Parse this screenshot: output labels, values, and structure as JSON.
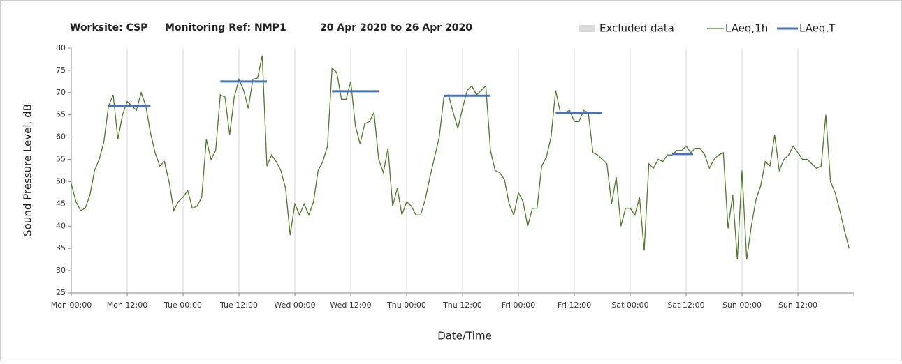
{
  "chart_data": {
    "type": "line",
    "title": "Worksite: CSP",
    "subtitle": "Monitoring Ref: NMP1",
    "date_range": "20 Apr 2020 to 26 Apr 2020",
    "xlabel": "Date/Time",
    "ylabel": "Sound Pressure Level, dB",
    "xlim": [
      0,
      168
    ],
    "ylim": [
      25,
      80
    ],
    "yticks": [
      25,
      30,
      35,
      40,
      45,
      50,
      55,
      60,
      65,
      70,
      75,
      80
    ],
    "xticks": [
      {
        "value": 0,
        "label": "Mon 00:00"
      },
      {
        "value": 12,
        "label": "Mon 12:00"
      },
      {
        "value": 24,
        "label": "Tue 00:00"
      },
      {
        "value": 36,
        "label": "Tue 12:00"
      },
      {
        "value": 48,
        "label": "Wed 00:00"
      },
      {
        "value": 60,
        "label": "Wed 12:00"
      },
      {
        "value": 72,
        "label": "Thu 00:00"
      },
      {
        "value": 84,
        "label": "Thu 12:00"
      },
      {
        "value": 96,
        "label": "Fri 00:00"
      },
      {
        "value": 108,
        "label": "Fri 12:00"
      },
      {
        "value": 120,
        "label": "Sat 00:00"
      },
      {
        "value": 132,
        "label": "Sat 12:00"
      },
      {
        "value": 144,
        "label": "Sun 00:00"
      },
      {
        "value": 156,
        "label": "Sun 12:00"
      }
    ],
    "grid": "x",
    "excluded": {
      "name": "Excluded data",
      "color": "#d9d9d9"
    },
    "series": [
      {
        "name": "LAeq,1h",
        "color": "#4f7a28",
        "x": [
          0,
          1,
          2,
          3,
          4,
          5,
          6,
          7,
          8,
          9,
          10,
          11,
          12,
          13,
          14,
          15,
          16,
          17,
          18,
          19,
          20,
          21,
          22,
          23,
          24,
          25,
          26,
          27,
          28,
          29,
          30,
          31,
          32,
          33,
          34,
          35,
          36,
          37,
          38,
          39,
          40,
          41,
          42,
          43,
          44,
          45,
          46,
          47,
          48,
          49,
          50,
          51,
          52,
          53,
          54,
          55,
          56,
          57,
          58,
          59,
          60,
          61,
          62,
          63,
          64,
          65,
          66,
          67,
          68,
          69,
          70,
          71,
          72,
          73,
          74,
          75,
          76,
          77,
          78,
          79,
          80,
          81,
          82,
          83,
          84,
          85,
          86,
          87,
          88,
          89,
          90,
          91,
          92,
          93,
          94,
          95,
          96,
          97,
          98,
          99,
          100,
          101,
          102,
          103,
          104,
          105,
          106,
          107,
          108,
          109,
          110,
          111,
          112,
          113,
          114,
          115,
          116,
          117,
          118,
          119,
          120,
          121,
          122,
          123,
          124,
          125,
          126,
          127,
          128,
          129,
          130,
          131,
          132,
          133,
          134,
          135,
          136,
          137,
          138,
          139,
          140,
          141,
          142,
          143,
          144,
          145,
          146,
          147,
          148,
          149,
          150,
          151,
          152,
          153,
          154,
          155,
          156,
          157,
          158,
          159,
          160,
          161,
          162,
          163,
          164,
          165,
          166,
          167
        ],
        "values": [
          49.5,
          45.5,
          43.5,
          44,
          47,
          52.5,
          55,
          59,
          67,
          69.5,
          59.5,
          65,
          68,
          67,
          66,
          70,
          67,
          61,
          56.5,
          53.5,
          54.5,
          50,
          43.5,
          45.5,
          46.5,
          48,
          44,
          44.5,
          46.5,
          59.5,
          55,
          57,
          69.5,
          69,
          60.5,
          69,
          73,
          70.5,
          66.5,
          73,
          73.3,
          78.3,
          53.5,
          56,
          54.5,
          52.5,
          48.5,
          38,
          45,
          42.5,
          45,
          42.5,
          45.5,
          52.5,
          54.5,
          58,
          75.5,
          74.5,
          68.5,
          68.5,
          72.5,
          62.5,
          58.5,
          63,
          63.5,
          65.5,
          55,
          52,
          57.5,
          44.5,
          48.5,
          42.5,
          45.5,
          44.5,
          42.5,
          42.5,
          46,
          51,
          55.5,
          60,
          69,
          69.5,
          65.5,
          62,
          66.5,
          70.5,
          71.5,
          69.5,
          70.5,
          71.5,
          57,
          52.5,
          52,
          50.5,
          45,
          42.5,
          47.5,
          45.5,
          40,
          44,
          44,
          53.5,
          55.5,
          60,
          70.5,
          65.5,
          65.5,
          66,
          63.5,
          63.5,
          66,
          65.5,
          56.5,
          56,
          55,
          54,
          45,
          51,
          40,
          44,
          44,
          42.5,
          46.5,
          34.5,
          54,
          53,
          55,
          54.5,
          56,
          56,
          57,
          57,
          58,
          56.5,
          57.5,
          57.5,
          56,
          53,
          55,
          56,
          56.5,
          39.5,
          47,
          32.5,
          52.5,
          32.5,
          40,
          46,
          49,
          54.5,
          53.5,
          60.5,
          52.5,
          55,
          56,
          58,
          56.5,
          55,
          55,
          54,
          53,
          53.5,
          65,
          50,
          47.5,
          43.5,
          39,
          35
        ]
      },
      {
        "name": "LAeq,T",
        "color": "#4472c4",
        "segments": [
          {
            "x": [
              8,
              17
            ],
            "value": 67
          },
          {
            "x": [
              32,
              42
            ],
            "value": 72.5
          },
          {
            "x": [
              56,
              66
            ],
            "value": 70.3
          },
          {
            "x": [
              80,
              90
            ],
            "value": 69.3
          },
          {
            "x": [
              104,
              114
            ],
            "value": 65.5
          },
          {
            "x": [
              129,
              133.5
            ],
            "value": 56.2
          }
        ]
      }
    ]
  }
}
